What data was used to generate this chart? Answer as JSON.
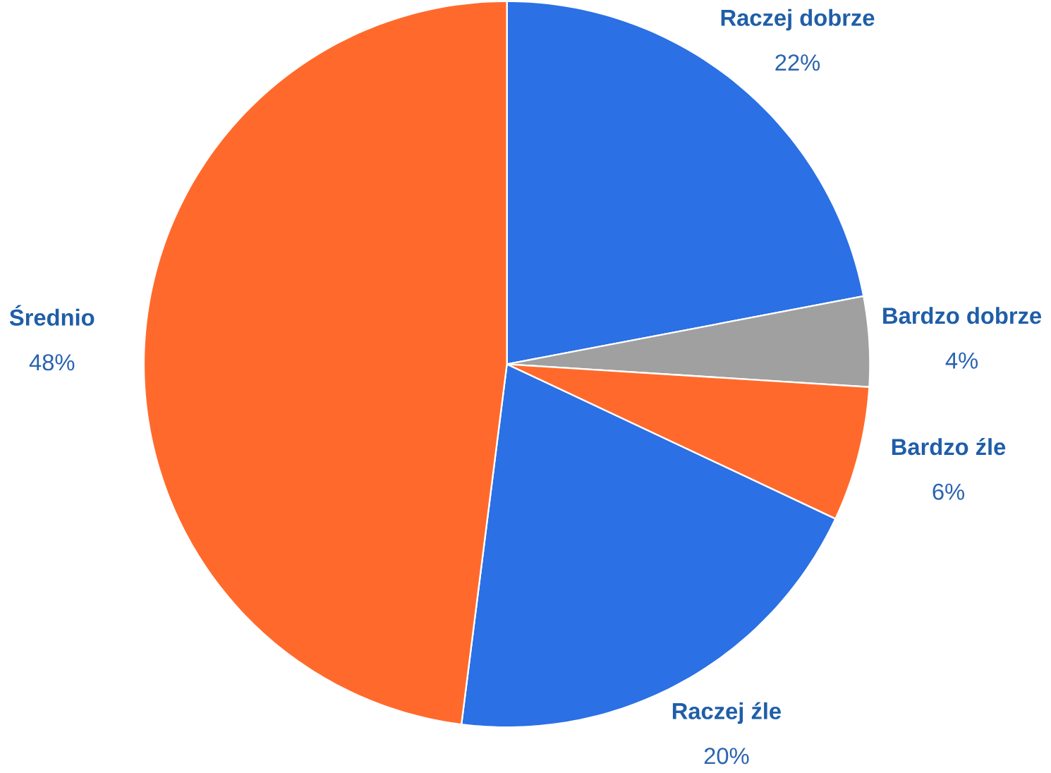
{
  "chart_data": {
    "type": "pie",
    "categories": [
      "Raczej dobrze",
      "Bardzo dobrze",
      "Bardzo źle",
      "Raczej źle",
      "Średnio"
    ],
    "values": [
      22,
      4,
      6,
      20,
      48
    ],
    "colors": [
      "#2b70e4",
      "#a0a0a0",
      "#ff6a2c",
      "#2b70e4",
      "#ff6a2c"
    ],
    "value_labels": [
      "22%",
      "4%",
      "6%",
      "20%",
      "48%"
    ]
  }
}
